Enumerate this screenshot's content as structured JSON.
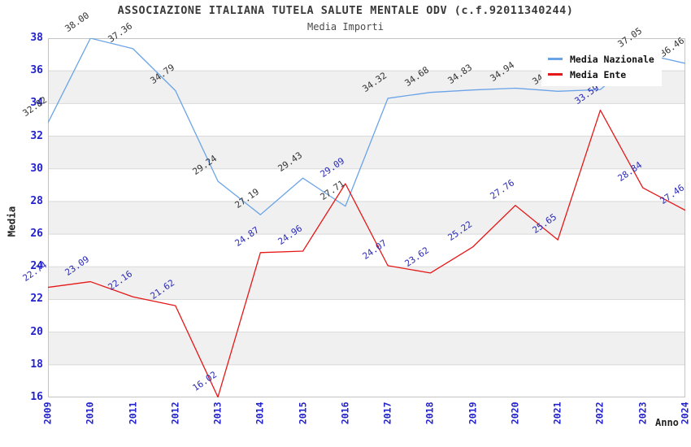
{
  "header": {
    "title": "ASSOCIAZIONE ITALIANA TUTELA SALUTE MENTALE ODV (c.f.92011340244)",
    "subtitle": "Media Importi"
  },
  "chart_data": {
    "type": "line",
    "x": [
      2009,
      2010,
      2011,
      2012,
      2013,
      2014,
      2015,
      2016,
      2017,
      2018,
      2019,
      2020,
      2021,
      2022,
      2023,
      2024
    ],
    "xlabel": "Anno",
    "ylabel": "Media",
    "ylim": [
      16,
      38
    ],
    "ytick_step": 2,
    "grid": {
      "horizontal_gridlines": true,
      "alternating_gray_bands": true
    },
    "legend": {
      "position": "top-right-inside",
      "entries": [
        "Media Nazionale",
        "Media Ente"
      ]
    },
    "series": [
      {
        "name": "Media Nazionale",
        "color": "#6ba3e8",
        "label_color": "#333333",
        "values": [
          32.82,
          38.0,
          37.36,
          34.79,
          29.24,
          27.19,
          29.43,
          27.71,
          34.32,
          34.68,
          34.83,
          34.94,
          34.75,
          34.85,
          37.05,
          36.46
        ],
        "value_labels_hidden_by_legend": [
          2021,
          2022
        ]
      },
      {
        "name": "Media Ente",
        "color": "#e61717",
        "label_color": "#2929b8",
        "values": [
          22.74,
          23.09,
          22.16,
          21.62,
          16.02,
          24.87,
          24.96,
          29.09,
          24.07,
          23.62,
          25.22,
          27.76,
          25.65,
          33.59,
          28.84,
          27.46
        ]
      }
    ]
  },
  "axis_style": {
    "tick_color": "#2222cc",
    "band_gray": "#f0f0f0",
    "gridline_color": "#d9d9d9",
    "frame_color": "#c4c4c4"
  }
}
